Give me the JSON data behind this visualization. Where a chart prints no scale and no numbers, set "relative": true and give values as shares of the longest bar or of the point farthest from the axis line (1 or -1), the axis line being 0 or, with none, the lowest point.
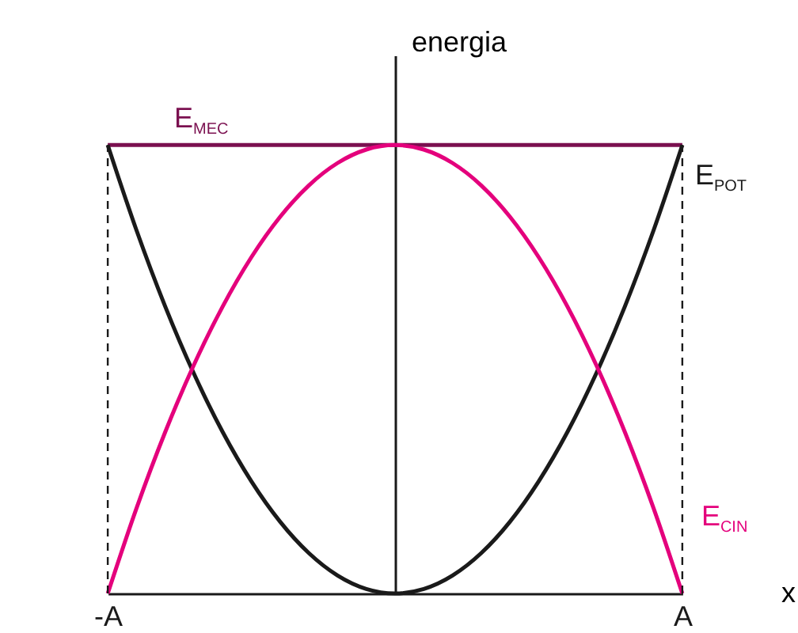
{
  "chart_data": {
    "type": "line",
    "relative": true,
    "ylabel": "energia",
    "xlabel": "x",
    "categories": [
      "-A",
      null,
      null,
      null,
      null,
      null,
      null,
      null,
      null,
      null,
      null,
      null,
      null,
      null,
      null,
      null,
      null,
      null,
      null,
      null,
      "A"
    ],
    "grid": false,
    "tick_labels": "x",
    "marker": "none",
    "line_style": "solid",
    "series": [
      {
        "name": "E$_{MEC}$",
        "color": "#7b1050",
        "values": [
          1,
          1,
          1,
          1,
          1,
          1,
          1,
          1,
          1,
          1,
          1,
          1,
          1,
          1,
          1,
          1,
          1,
          1,
          1,
          1,
          1
        ]
      },
      {
        "name": "E$_{POT}$",
        "color": "#1a1a1a",
        "values": [
          1,
          0.81,
          0.64,
          0.49,
          0.36,
          0.25,
          0.16,
          0.09,
          0.04,
          0.01,
          0,
          0.01,
          0.04,
          0.09,
          0.16,
          0.25,
          0.36,
          0.49,
          0.64,
          0.81,
          1
        ]
      },
      {
        "name": "E$_{CIN}$",
        "color": "#e4007c",
        "values": [
          0,
          0.19,
          0.36,
          0.51,
          0.64,
          0.75,
          0.84,
          0.91,
          0.96,
          0.99,
          1,
          0.99,
          0.96,
          0.91,
          0.84,
          0.75,
          0.64,
          0.51,
          0.36,
          0.19,
          0
        ]
      }
    ],
    "ref_lines": [
      {
        "axis": "x",
        "value": "-A",
        "line_style": "dashed",
        "color": "#1a1a1a"
      },
      {
        "axis": "x",
        "value": "A",
        "line_style": "dashed",
        "color": "#1a1a1a"
      }
    ]
  }
}
